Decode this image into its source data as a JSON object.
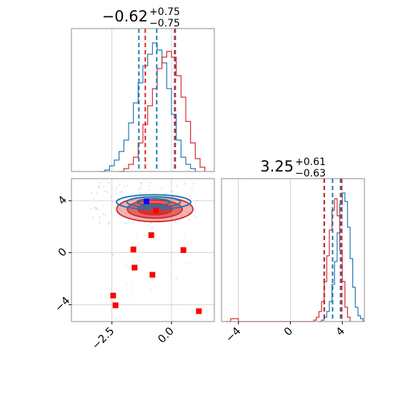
{
  "chart_data": [
    {
      "type": "histogram",
      "panel": "top-left",
      "title": {
        "main": "−0.62",
        "sup": "+0.75",
        "sub": "−0.75"
      },
      "xlim": [
        -4.2,
        1.8
      ],
      "grid": true,
      "quantile_lines": {
        "blue": [
          -1.37,
          -0.62,
          0.13
        ],
        "red": [
          -1.1,
          0.16
        ]
      },
      "series": [
        {
          "color": "#1f77b4",
          "x": [
            -3.0,
            -2.8,
            -2.6,
            -2.4,
            -2.2,
            -2.0,
            -1.8,
            -1.6,
            -1.4,
            -1.2,
            -1.0,
            -0.8,
            -0.6,
            -0.4,
            -0.2,
            0.0,
            0.2,
            0.4,
            0.6,
            0.8,
            1.0
          ],
          "values": [
            0.0,
            0.01,
            0.04,
            0.08,
            0.14,
            0.22,
            0.34,
            0.48,
            0.62,
            0.74,
            0.82,
            0.9,
            0.85,
            0.76,
            0.58,
            0.4,
            0.22,
            0.1,
            0.05,
            0.02,
            0.0
          ]
        },
        {
          "color": "#d62728",
          "x": [
            -2.2,
            -2.0,
            -1.8,
            -1.6,
            -1.4,
            -1.2,
            -1.0,
            -0.8,
            -0.6,
            -0.4,
            -0.2,
            0.0,
            0.2,
            0.4,
            0.6,
            0.8,
            1.0,
            1.2,
            1.4
          ],
          "values": [
            0.0,
            0.02,
            0.05,
            0.1,
            0.2,
            0.33,
            0.46,
            0.58,
            0.72,
            0.8,
            0.84,
            0.8,
            0.67,
            0.52,
            0.35,
            0.2,
            0.09,
            0.03,
            0.0
          ]
        }
      ]
    },
    {
      "type": "scatter",
      "panel": "bottom-left",
      "xlim": [
        -4.2,
        1.8
      ],
      "ylim": [
        -5.3,
        5.7
      ],
      "xticks": [
        "−2.5",
        "0.0"
      ],
      "yticks": [
        "−4",
        "0",
        "4"
      ],
      "grid": true,
      "contours": [
        {
          "color": "#1f77b4",
          "cx": -0.75,
          "cy": 3.9,
          "rx": 1.3,
          "ry": 0.8
        },
        {
          "color": "#d62728",
          "cx": -0.7,
          "cy": 3.35,
          "rx": 1.6,
          "ry": 1.55
        }
      ],
      "red_points": [
        {
          "x": -1.6,
          "y": 0.25
        },
        {
          "x": -1.55,
          "y": -1.15
        },
        {
          "x": -0.8,
          "y": -1.7
        },
        {
          "x": 0.5,
          "y": 0.2
        },
        {
          "x": -2.45,
          "y": -3.3
        },
        {
          "x": -2.35,
          "y": -4.05
        },
        {
          "x": 1.15,
          "y": -4.5
        },
        {
          "x": -0.65,
          "y": 3.25
        },
        {
          "x": -0.85,
          "y": 1.35
        }
      ],
      "blue_points": [
        {
          "x": -1.05,
          "y": 3.95
        }
      ]
    },
    {
      "type": "histogram",
      "panel": "bottom-right",
      "title": {
        "main": "3.25",
        "sup": "+0.61",
        "sub": "−0.63"
      },
      "xlim": [
        -5.3,
        5.7
      ],
      "xticks": [
        "−4",
        "0",
        "4"
      ],
      "grid": true,
      "quantile_lines": {
        "blue": [
          2.62,
          3.25,
          3.86
        ],
        "red": [
          2.6,
          3.95
        ]
      },
      "series": [
        {
          "color": "#1f77b4",
          "x": [
            2.2,
            2.4,
            2.6,
            2.8,
            3.0,
            3.2,
            3.4,
            3.6,
            3.8,
            4.0,
            4.2,
            4.4,
            4.6,
            4.8,
            5.0,
            5.2,
            5.4,
            5.6
          ],
          "values": [
            0.0,
            0.01,
            0.03,
            0.07,
            0.14,
            0.26,
            0.42,
            0.62,
            0.82,
            0.9,
            0.84,
            0.66,
            0.44,
            0.24,
            0.1,
            0.04,
            0.02,
            0.0
          ]
        },
        {
          "color": "#d62728",
          "x": [
            -5.0,
            -4.6,
            -4.0,
            1.8,
            2.0,
            2.2,
            2.4,
            2.6,
            2.8,
            3.0,
            3.2,
            3.4,
            3.6,
            3.8,
            4.0,
            4.2,
            4.4,
            4.6
          ],
          "values": [
            0.0,
            0.02,
            0.0,
            0.01,
            0.03,
            0.07,
            0.14,
            0.28,
            0.46,
            0.64,
            0.78,
            0.86,
            0.74,
            0.5,
            0.28,
            0.1,
            0.03,
            0.0
          ]
        }
      ]
    }
  ]
}
